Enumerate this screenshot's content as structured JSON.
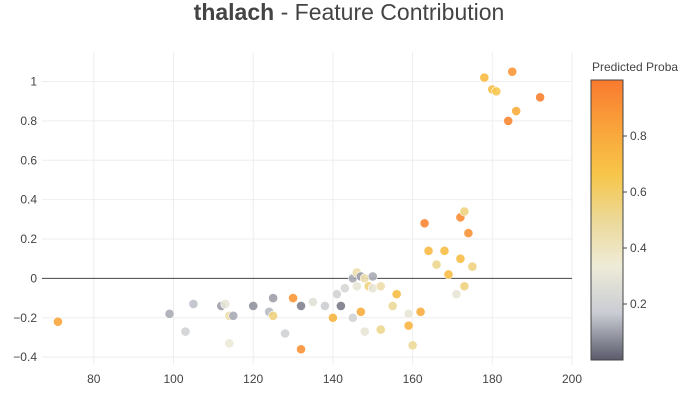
{
  "chart_data": {
    "type": "scatter",
    "title_feature": "thalach",
    "title_rest": " - Feature Contribution",
    "xlabel": "",
    "ylabel": "",
    "xlim": [
      67,
      200
    ],
    "ylim": [
      -0.44,
      1.15
    ],
    "x_ticks": [
      80,
      100,
      120,
      140,
      160,
      180,
      200
    ],
    "y_ticks": [
      -0.4,
      -0.2,
      0,
      0.2,
      0.4,
      0.6,
      0.8,
      1
    ],
    "grid": true,
    "zero_line": true,
    "colorbar": {
      "title": "Predicted Proba",
      "range": [
        0,
        1
      ],
      "ticks": [
        0.2,
        0.4,
        0.6,
        0.8
      ],
      "colors": [
        "#5a5a6b",
        "#c9ccd3",
        "#eeebd8",
        "#ecd998",
        "#f7c548",
        "#f9a23a",
        "#f97a30"
      ]
    },
    "points": [
      {
        "x": 71,
        "y": -0.22,
        "p": 0.82
      },
      {
        "x": 99,
        "y": -0.18,
        "p": 0.12
      },
      {
        "x": 103,
        "y": -0.27,
        "p": 0.2
      },
      {
        "x": 105,
        "y": -0.13,
        "p": 0.15
      },
      {
        "x": 112,
        "y": -0.14,
        "p": 0.1
      },
      {
        "x": 113,
        "y": -0.13,
        "p": 0.3
      },
      {
        "x": 114,
        "y": -0.19,
        "p": 0.45
      },
      {
        "x": 114,
        "y": -0.33,
        "p": 0.32
      },
      {
        "x": 115,
        "y": -0.19,
        "p": 0.12
      },
      {
        "x": 120,
        "y": -0.14,
        "p": 0.08
      },
      {
        "x": 124,
        "y": -0.17,
        "p": 0.14
      },
      {
        "x": 125,
        "y": -0.1,
        "p": 0.1
      },
      {
        "x": 125,
        "y": -0.19,
        "p": 0.55
      },
      {
        "x": 128,
        "y": -0.28,
        "p": 0.2
      },
      {
        "x": 130,
        "y": -0.1,
        "p": 0.88
      },
      {
        "x": 132,
        "y": -0.14,
        "p": 0.06
      },
      {
        "x": 132,
        "y": -0.36,
        "p": 0.9
      },
      {
        "x": 135,
        "y": -0.12,
        "p": 0.28
      },
      {
        "x": 138,
        "y": -0.14,
        "p": 0.18
      },
      {
        "x": 140,
        "y": -0.2,
        "p": 0.75
      },
      {
        "x": 141,
        "y": -0.08,
        "p": 0.2
      },
      {
        "x": 142,
        "y": -0.14,
        "p": 0.05
      },
      {
        "x": 143,
        "y": -0.05,
        "p": 0.22
      },
      {
        "x": 145,
        "y": 0.0,
        "p": 0.12
      },
      {
        "x": 145,
        "y": -0.2,
        "p": 0.2
      },
      {
        "x": 146,
        "y": 0.03,
        "p": 0.45
      },
      {
        "x": 146,
        "y": -0.04,
        "p": 0.3
      },
      {
        "x": 147,
        "y": 0.01,
        "p": 0.1
      },
      {
        "x": 147,
        "y": -0.17,
        "p": 0.78
      },
      {
        "x": 148,
        "y": -0.27,
        "p": 0.3
      },
      {
        "x": 148,
        "y": 0.0,
        "p": 0.45
      },
      {
        "x": 149,
        "y": -0.04,
        "p": 0.55
      },
      {
        "x": 150,
        "y": 0.01,
        "p": 0.12
      },
      {
        "x": 150,
        "y": -0.05,
        "p": 0.3
      },
      {
        "x": 152,
        "y": -0.26,
        "p": 0.52
      },
      {
        "x": 152,
        "y": -0.04,
        "p": 0.45
      },
      {
        "x": 155,
        "y": -0.14,
        "p": 0.5
      },
      {
        "x": 156,
        "y": -0.08,
        "p": 0.7
      },
      {
        "x": 159,
        "y": -0.18,
        "p": 0.3
      },
      {
        "x": 159,
        "y": -0.24,
        "p": 0.75
      },
      {
        "x": 160,
        "y": -0.34,
        "p": 0.5
      },
      {
        "x": 162,
        "y": -0.17,
        "p": 0.78
      },
      {
        "x": 163,
        "y": 0.28,
        "p": 0.95
      },
      {
        "x": 164,
        "y": 0.14,
        "p": 0.72
      },
      {
        "x": 166,
        "y": 0.07,
        "p": 0.52
      },
      {
        "x": 168,
        "y": 0.14,
        "p": 0.7
      },
      {
        "x": 169,
        "y": 0.02,
        "p": 0.7
      },
      {
        "x": 171,
        "y": -0.08,
        "p": 0.3
      },
      {
        "x": 172,
        "y": 0.31,
        "p": 0.93
      },
      {
        "x": 172,
        "y": 0.1,
        "p": 0.7
      },
      {
        "x": 173,
        "y": 0.34,
        "p": 0.55
      },
      {
        "x": 173,
        "y": -0.04,
        "p": 0.55
      },
      {
        "x": 174,
        "y": 0.23,
        "p": 0.9
      },
      {
        "x": 175,
        "y": 0.06,
        "p": 0.55
      },
      {
        "x": 178,
        "y": 1.02,
        "p": 0.72
      },
      {
        "x": 180,
        "y": 0.96,
        "p": 0.7
      },
      {
        "x": 181,
        "y": 0.95,
        "p": 0.65
      },
      {
        "x": 184,
        "y": 0.8,
        "p": 0.95
      },
      {
        "x": 185,
        "y": 1.05,
        "p": 0.88
      },
      {
        "x": 186,
        "y": 0.85,
        "p": 0.78
      },
      {
        "x": 192,
        "y": 0.92,
        "p": 0.97
      }
    ]
  }
}
